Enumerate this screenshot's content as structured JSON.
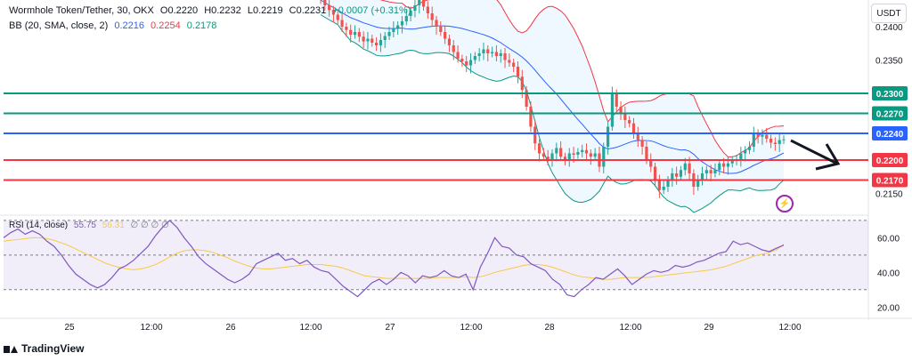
{
  "legend": {
    "symbol": "Wormhole Token/Tether, 30, OKX",
    "open": "O0.2220",
    "high": "H0.2232",
    "low": "L0.2219",
    "close": "C0.2231",
    "change": "+0.0007 (+0.31%)",
    "bb_label": "BB (20, SMA, close, 2)",
    "bb_values": [
      "0.2216",
      "0.2254",
      "0.2178"
    ],
    "rsi_label": "RSI (14, close)",
    "rsi_values": [
      "55.75",
      "56.31"
    ],
    "rsi_placeholders": "∅ ∅ ∅ ∅"
  },
  "currency_button": "USDT",
  "branding": "TradingView",
  "colors": {
    "up": "#26a69a",
    "down": "#ef5350",
    "basis": "#2962ff",
    "bands": "#f23645",
    "lower_band": "#089981",
    "rsi": "#7e57c2",
    "rsi_ma": "#f7c948"
  },
  "chart_data": [
    {
      "type": "candlestick",
      "title": "Wormhole Token/Tether, 30, OKX",
      "ylim": [
        0.212,
        0.244
      ],
      "y_ticks": [
        "0.2400",
        "0.2350",
        "0.2150"
      ],
      "x_ticks": [
        "25",
        "12:00",
        "26",
        "12:00",
        "27",
        "12:00",
        "28",
        "12:00",
        "29",
        "12:00"
      ],
      "horizontal_levels": [
        {
          "label": "0.2300",
          "value": 0.23,
          "color": "#089981"
        },
        {
          "label": "0.2270",
          "value": 0.227,
          "color": "#089981"
        },
        {
          "label": "0.2240",
          "value": 0.224,
          "color": "#2962ff"
        },
        {
          "label": "0.2200",
          "value": 0.22,
          "color": "#f23645"
        },
        {
          "label": "0.2170",
          "value": 0.217,
          "color": "#f23645"
        }
      ],
      "closes": [
        0.244,
        0.2432,
        0.2425,
        0.2418,
        0.241,
        0.24,
        0.2395,
        0.2388,
        0.2392,
        0.2385,
        0.2378,
        0.2382,
        0.2376,
        0.2372,
        0.238,
        0.2386,
        0.2392,
        0.2398,
        0.2402,
        0.2408,
        0.2416,
        0.2424,
        0.2432,
        0.244,
        0.243,
        0.242,
        0.241,
        0.24,
        0.2392,
        0.2382,
        0.2372,
        0.2362,
        0.2352,
        0.2348,
        0.2342,
        0.235,
        0.2356,
        0.236,
        0.2366,
        0.236,
        0.2362,
        0.2356,
        0.236,
        0.235,
        0.2346,
        0.234,
        0.2325,
        0.2305,
        0.228,
        0.225,
        0.2225,
        0.221,
        0.2205,
        0.22,
        0.221,
        0.2218,
        0.2205,
        0.22,
        0.221,
        0.2208,
        0.2212,
        0.2215,
        0.221,
        0.2205,
        0.221,
        0.219,
        0.222,
        0.225,
        0.23,
        0.228,
        0.227,
        0.226,
        0.2255,
        0.224,
        0.223,
        0.222,
        0.22,
        0.219,
        0.217,
        0.2155,
        0.216,
        0.217,
        0.218,
        0.2175,
        0.2185,
        0.2195,
        0.218,
        0.216,
        0.217,
        0.218,
        0.2185,
        0.218,
        0.2185,
        0.2195,
        0.219,
        0.2195,
        0.22,
        0.22,
        0.221,
        0.2215,
        0.222,
        0.224,
        0.2235,
        0.2238,
        0.2232,
        0.2226,
        0.2224,
        0.223,
        0.2231
      ],
      "bb_window": 20
    },
    {
      "type": "line",
      "title": "RSI (14, close)",
      "ylim": [
        15,
        72
      ],
      "y_ticks": [
        "60.00",
        "40.00",
        "20.00"
      ],
      "guides": [
        70,
        50,
        30
      ],
      "series": [
        {
          "name": "RSI",
          "values": [
            60,
            63,
            65,
            62,
            64,
            62,
            58,
            55,
            50,
            44,
            39,
            36,
            33,
            31,
            33,
            37,
            42,
            44,
            47,
            51,
            55,
            61,
            66,
            70,
            66,
            60,
            55,
            49,
            45,
            42,
            39,
            36,
            34,
            36,
            39,
            45,
            47,
            49,
            51,
            47,
            48,
            45,
            47,
            43,
            41,
            40,
            36,
            32,
            29,
            26,
            30,
            34,
            36,
            33,
            36,
            40,
            38,
            34,
            38,
            37,
            38,
            41,
            38,
            37,
            39,
            30,
            43,
            51,
            60,
            55,
            54,
            50,
            49,
            45,
            43,
            41,
            36,
            33,
            27,
            26,
            30,
            33,
            37,
            36,
            39,
            42,
            38,
            33,
            36,
            39,
            41,
            40,
            41,
            44,
            43,
            44,
            46,
            47,
            49,
            51,
            52,
            58,
            56,
            57,
            55,
            53,
            52,
            54,
            55.75
          ]
        },
        {
          "name": "RSI MA",
          "values": [
            58,
            58.5,
            59,
            59.5,
            60,
            60,
            59.5,
            58.5,
            57,
            55.5,
            53.5,
            51.5,
            49.5,
            47.5,
            45.5,
            44,
            43,
            42,
            41.5,
            42,
            43,
            44.5,
            46.5,
            49,
            51,
            52.5,
            53,
            53,
            52.5,
            51.5,
            50,
            48.5,
            46.5,
            45,
            43.5,
            42.5,
            42,
            42,
            42.5,
            43,
            43.5,
            44,
            44.5,
            44.5,
            44.5,
            44,
            43.5,
            42.5,
            41,
            39.5,
            38,
            37.5,
            37,
            36.5,
            36.5,
            36.5,
            36.5,
            36.5,
            36.5,
            36.5,
            37,
            37,
            37,
            37,
            37.5,
            37,
            37.5,
            38.5,
            40,
            41,
            42,
            43,
            44,
            44.5,
            44.5,
            44,
            43,
            41.5,
            40,
            38.5,
            37.5,
            37,
            36.5,
            36,
            36,
            36.5,
            37,
            37,
            37,
            37,
            37.5,
            38,
            38.5,
            39,
            39.5,
            40,
            40.5,
            41,
            41.5,
            42.5,
            43.5,
            45,
            46.5,
            48,
            49.5,
            50.5,
            51.5,
            53,
            56.31
          ]
        }
      ]
    }
  ]
}
